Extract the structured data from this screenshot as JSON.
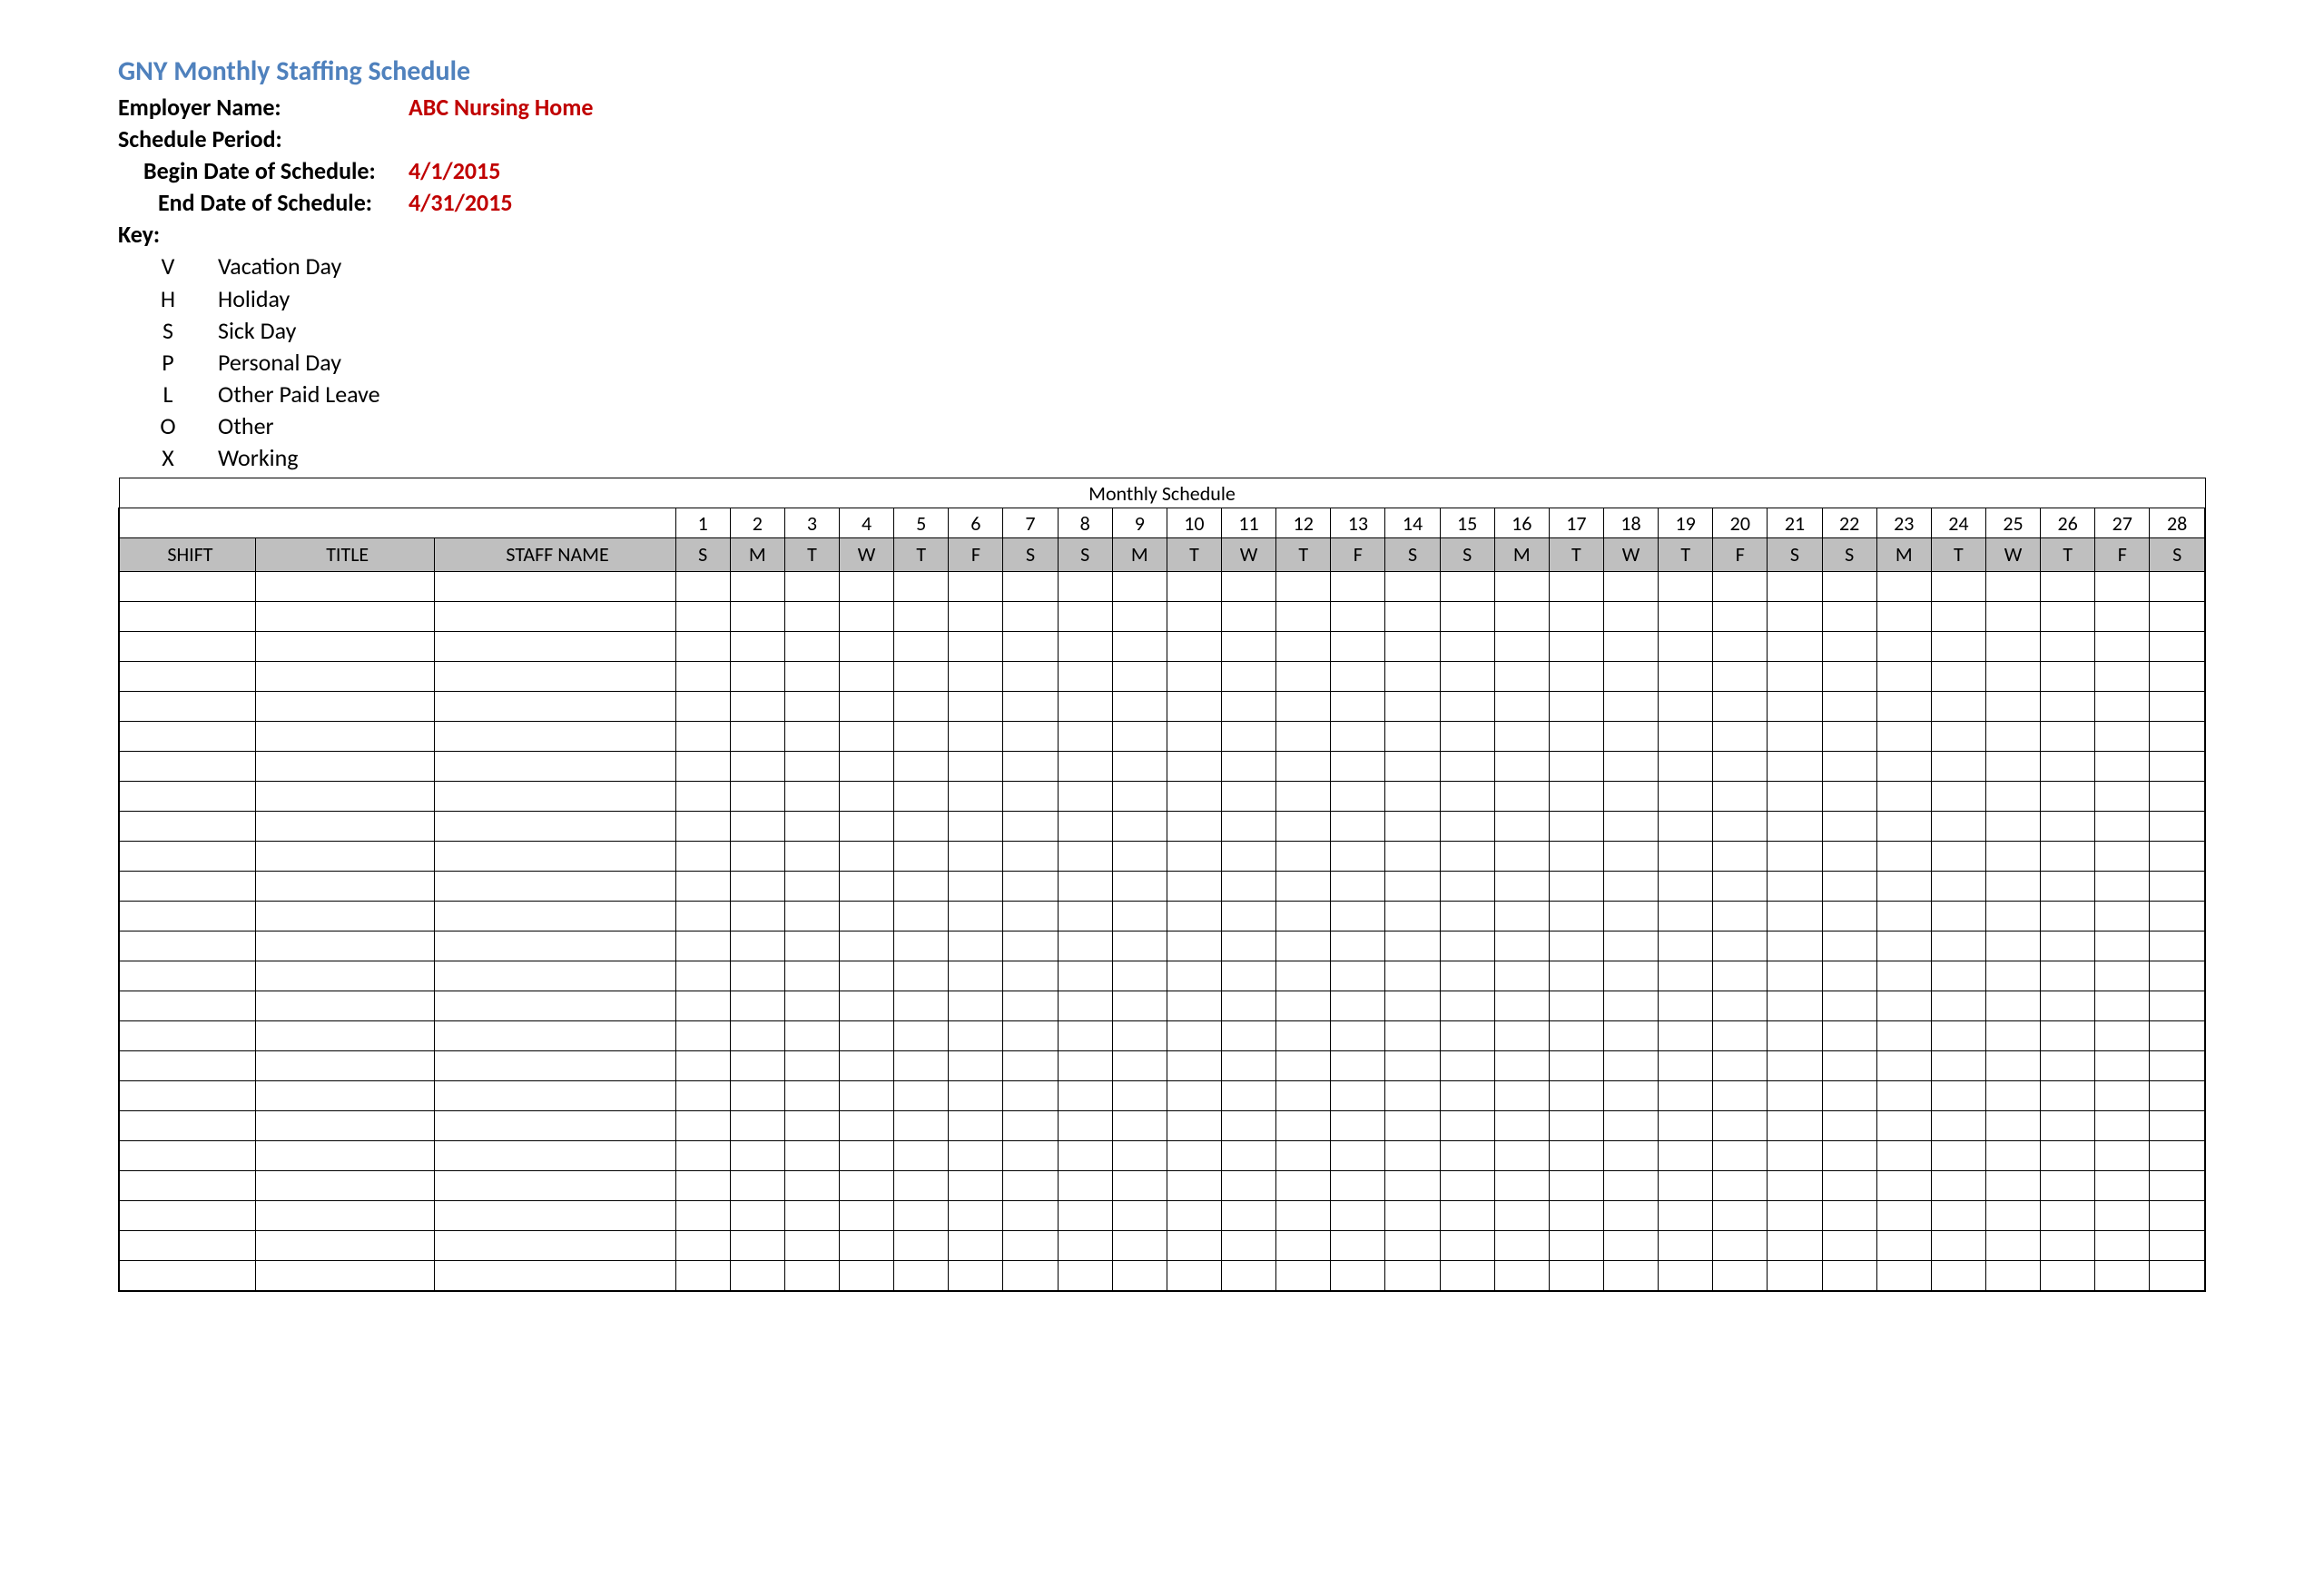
{
  "title": "GNY Monthly Staffing Schedule",
  "header": {
    "employer_label": "Employer Name:",
    "employer_value": "ABC Nursing Home",
    "schedule_period_label": "Schedule Period:",
    "begin_label": "Begin Date of Schedule:",
    "begin_value": "4/1/2015",
    "end_label": "End Date of Schedule:",
    "end_value": "4/31/2015",
    "key_label": "Key:"
  },
  "key_items": [
    {
      "code": "V",
      "desc": "Vacation Day"
    },
    {
      "code": "H",
      "desc": "Holiday"
    },
    {
      "code": "S",
      "desc": "Sick Day"
    },
    {
      "code": "P",
      "desc": "Personal Day"
    },
    {
      "code": "L",
      "desc": "Other Paid Leave"
    },
    {
      "code": "O",
      "desc": "Other"
    },
    {
      "code": "X",
      "desc": "Working"
    }
  ],
  "table": {
    "monthly_schedule_label": "Monthly Schedule",
    "col_headers": {
      "shift": "SHIFT",
      "title": "TITLE",
      "staff_name": "STAFF NAME"
    },
    "day_numbers": [
      "1",
      "2",
      "3",
      "4",
      "5",
      "6",
      "7",
      "8",
      "9",
      "10",
      "11",
      "12",
      "13",
      "14",
      "15",
      "16",
      "17",
      "18",
      "19",
      "20",
      "21",
      "22",
      "23",
      "24",
      "25",
      "26",
      "27",
      "28"
    ],
    "day_of_week": [
      "S",
      "M",
      "T",
      "W",
      "T",
      "F",
      "S",
      "S",
      "M",
      "T",
      "W",
      "T",
      "F",
      "S",
      "S",
      "M",
      "T",
      "W",
      "T",
      "F",
      "S",
      "S",
      "M",
      "T",
      "W",
      "T",
      "F",
      "S"
    ],
    "empty_rows": 24,
    "styling": {
      "header_bg": "#bfbfbf",
      "border_color": "#000000",
      "title_color": "#4f81bd",
      "value_color": "#c00000",
      "font_family": "Calibri"
    }
  }
}
